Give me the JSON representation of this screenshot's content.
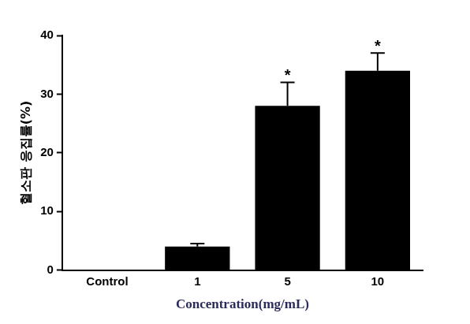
{
  "chart_data": {
    "type": "bar",
    "categories": [
      "Control",
      "1",
      "5",
      "10"
    ],
    "values": [
      0,
      4,
      28,
      34
    ],
    "errors": [
      0,
      0.5,
      4,
      3
    ],
    "color": "#000000",
    "x_label": "Concentration(mg/mL)",
    "y_label": "혈소판 응집률(%)",
    "ylim": [
      0,
      40
    ],
    "yticks": [
      0,
      10,
      20,
      30,
      40
    ],
    "grid": false,
    "annotations": [
      {
        "category": "5",
        "text": "*"
      },
      {
        "category": "10",
        "text": "*"
      }
    ]
  }
}
